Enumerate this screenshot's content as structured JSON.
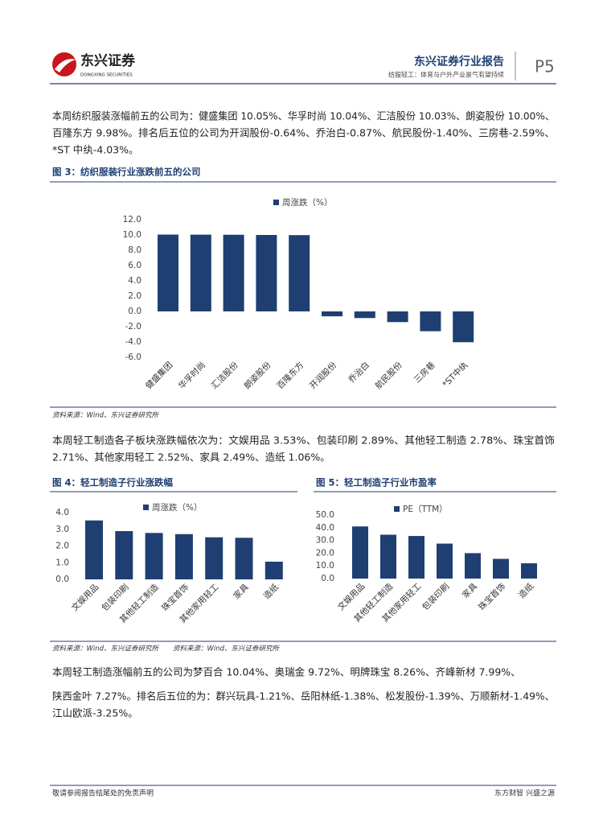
{
  "header": {
    "logo_name": "东兴证券",
    "logo_english": "DONGXING SECURITIES",
    "report_title": "东兴证券行业报告",
    "subtitle": "纺服轻工：体育与户外产业景气有望持续",
    "page": "P5"
  },
  "paragraphs": [
    [
      "本周纺织服装涨幅前五的公司为：健盛集团 10.05%、华孚时尚 10.04%、汇洁股份 10.03%、朗姿股份 10.00%、",
      "百隆东方 9.98%。排名后五位的公司为开润股份-0.64%、乔治白-0.87%、航民股份-1.40%、三房巷-2.59%、",
      "*ST 中纨-4.03%。"
    ],
    [
      "本周轻工制造各子板块涨跌幅依次为：文娱用品 3.53%、包装印刷 2.89%、其他轻工制造 2.78%、珠宝首饰",
      "2.71%、其他家用轻工 2.52%、家具 2.49%、造纸 1.06%。"
    ],
    [
      "本周轻工制造涨幅前五的公司为梦百合 10.04%、奥瑞金 9.72%、明牌珠宝 8.26%、齐峰新材 7.99%、",
      "陕西金叶 7.27%。排名后五位的为：群兴玩具-1.21%、岳阳林纸-1.38%、松发股份-1.39%、万顺新材-1.49%、",
      "江山欧派-3.25%。"
    ]
  ],
  "sources": [
    "资料来源：Wind、东兴证券研究所",
    "资料来源：Wind、东兴证券研究所",
    "资料来源：Wind、东兴证券研究所"
  ],
  "chart_data": [
    {
      "type": "bar",
      "title": "图 3：纺织服装行业涨跌前五的公司",
      "categories": [
        "健盛集团",
        "华孚时尚",
        "汇洁股份",
        "朗姿股份",
        "百隆东方",
        "开润股份",
        "乔治白",
        "航民股份",
        "三房巷",
        "*ST中纨"
      ],
      "series": [
        {
          "name": "周涨跌（%）",
          "color": "#1f3f73",
          "values": [
            10.05,
            10.04,
            10.03,
            10.0,
            9.98,
            -0.64,
            -0.87,
            -1.4,
            -2.59,
            -4.03
          ]
        }
      ],
      "ylim": [
        -6,
        12
      ],
      "yticks": [
        {
          "value": 12,
          "label": "12.0"
        },
        {
          "value": 10,
          "label": "10.0"
        },
        {
          "value": 8,
          "label": "8.0"
        },
        {
          "value": 6,
          "label": "6.0"
        },
        {
          "value": 4,
          "label": "4.0"
        },
        {
          "value": 2,
          "label": "2.0"
        },
        {
          "value": 0,
          "label": "0.0"
        },
        {
          "value": -2,
          "label": "-2.0"
        },
        {
          "value": -4,
          "label": "-4.0"
        },
        {
          "value": -6,
          "label": "-6.0"
        }
      ],
      "grid": false,
      "legend": "top"
    },
    {
      "type": "bar",
      "title": "图 4：轻工制造子行业涨跌幅",
      "categories": [
        "文娱用品",
        "包装印刷",
        "其他轻工制造",
        "珠宝首饰",
        "其他家用轻工",
        "家具",
        "造纸"
      ],
      "series": [
        {
          "name": "周涨跌（%）",
          "color": "#1f3f73",
          "values": [
            3.53,
            2.89,
            2.78,
            2.71,
            2.52,
            2.49,
            1.06
          ]
        }
      ],
      "ylim": [
        0,
        4
      ],
      "yticks": [
        {
          "value": 4,
          "label": "4.0"
        },
        {
          "value": 3,
          "label": "3.0"
        },
        {
          "value": 2,
          "label": "2.0"
        },
        {
          "value": 1,
          "label": "1.0"
        },
        {
          "value": 0,
          "label": "0.0"
        }
      ],
      "grid": false,
      "legend": "top"
    },
    {
      "type": "bar",
      "title": "图 5：轻工制造子行业市盈率",
      "categories": [
        "文娱用品",
        "其他轻工制造",
        "其他家用轻工",
        "包装印刷",
        "家具",
        "珠宝首饰",
        "造纸"
      ],
      "series": [
        {
          "name": "PE（TTM）",
          "color": "#1f3f73",
          "values": [
            41,
            34.5,
            33.5,
            27.5,
            20,
            15.5,
            12
          ]
        }
      ],
      "ylim": [
        0,
        50
      ],
      "yticks": [
        {
          "value": 50,
          "label": "50.0"
        },
        {
          "value": 40,
          "label": "40.0"
        },
        {
          "value": 30,
          "label": "30.0"
        },
        {
          "value": 20,
          "label": "20.0"
        },
        {
          "value": 10,
          "label": "10.0"
        },
        {
          "value": 0,
          "label": "0.0"
        }
      ],
      "grid": false,
      "legend": "top"
    }
  ],
  "footer": {
    "left": "敬请参阅报告结尾处的免责声明",
    "right": "东方财智 兴盛之源"
  }
}
